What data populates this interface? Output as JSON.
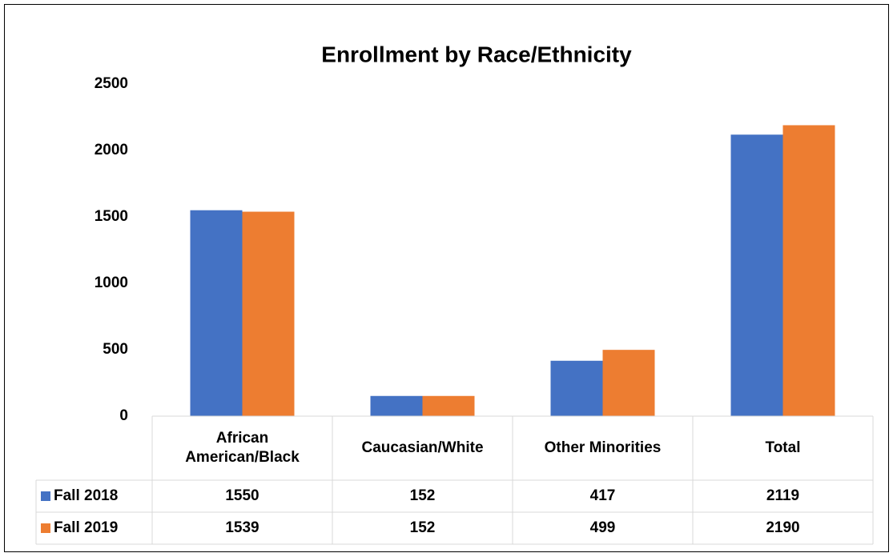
{
  "chart_data": {
    "type": "bar",
    "title": "Enrollment by Race/Ethnicity",
    "categories": [
      "African American/Black",
      "Caucasian/White",
      "Other Minorities",
      "Total"
    ],
    "series": [
      {
        "name": "Fall 2018",
        "color": "#4472c4",
        "values": [
          1550,
          152,
          417,
          2119
        ]
      },
      {
        "name": "Fall 2019",
        "color": "#ed7d31",
        "values": [
          1539,
          152,
          499,
          2190
        ]
      }
    ],
    "ylim": [
      0,
      2500
    ],
    "yticks": [
      0,
      500,
      1000,
      1500,
      2000,
      2500
    ],
    "grid": false,
    "data_table": true
  }
}
